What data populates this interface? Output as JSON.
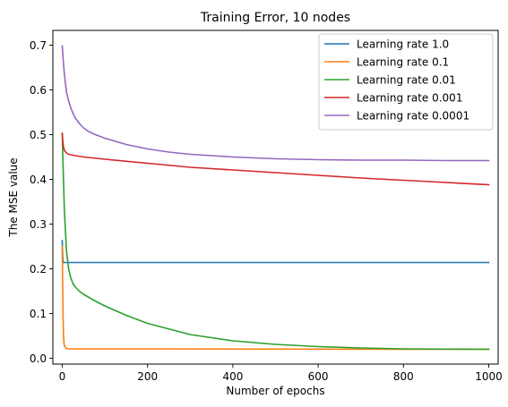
{
  "chart_data": {
    "type": "line",
    "title": "Training Error, 10 nodes",
    "xlabel": "Number of epochs",
    "ylabel": "The MSE value",
    "xlim": [
      -22,
      1022
    ],
    "ylim": [
      -0.013,
      0.733
    ],
    "xticks": [
      0,
      200,
      400,
      600,
      800,
      1000
    ],
    "yticks": [
      0.0,
      0.1,
      0.2,
      0.3,
      0.4,
      0.5,
      0.6,
      0.7
    ],
    "grid": false,
    "legend_position": "top-right",
    "series": [
      {
        "name": "Learning rate 1.0",
        "color": "#1f77b4",
        "x": [
          0,
          1,
          2,
          3,
          5,
          10,
          50,
          200,
          500,
          1000
        ],
        "y": [
          0.263,
          0.23,
          0.216,
          0.214,
          0.214,
          0.214,
          0.214,
          0.214,
          0.214,
          0.214
        ]
      },
      {
        "name": "Learning rate 0.1",
        "color": "#ff7f0e",
        "x": [
          0,
          1,
          2,
          3,
          4,
          5,
          7,
          10,
          15,
          20,
          50,
          100,
          200,
          400,
          600,
          800,
          1000
        ],
        "y": [
          0.25,
          0.17,
          0.09,
          0.05,
          0.035,
          0.028,
          0.024,
          0.022,
          0.021,
          0.021,
          0.021,
          0.021,
          0.021,
          0.0205,
          0.0203,
          0.0202,
          0.0201
        ]
      },
      {
        "name": "Learning rate 0.01",
        "color": "#2ca02c",
        "x": [
          0,
          2,
          5,
          10,
          15,
          20,
          25,
          30,
          40,
          50,
          75,
          100,
          150,
          200,
          300,
          400,
          500,
          600,
          700,
          800,
          900,
          1000
        ],
        "y": [
          0.502,
          0.43,
          0.33,
          0.24,
          0.2,
          0.18,
          0.167,
          0.16,
          0.15,
          0.143,
          0.129,
          0.117,
          0.096,
          0.078,
          0.053,
          0.039,
          0.031,
          0.026,
          0.023,
          0.021,
          0.0205,
          0.02
        ]
      },
      {
        "name": "Learning rate 0.001",
        "color": "#d62728",
        "x": [
          0,
          1,
          2,
          3,
          5,
          8,
          10,
          15,
          20,
          30,
          50,
          100,
          200,
          300,
          400,
          500,
          600,
          700,
          800,
          900,
          1000
        ],
        "y": [
          0.503,
          0.49,
          0.48,
          0.472,
          0.465,
          0.461,
          0.459,
          0.456,
          0.455,
          0.453,
          0.45,
          0.445,
          0.436,
          0.427,
          0.421,
          0.415,
          0.409,
          0.403,
          0.398,
          0.393,
          0.388
        ]
      },
      {
        "name": "Learning rate 0.0001",
        "color": "#9467bd",
        "x": [
          0,
          2,
          5,
          8,
          10,
          15,
          20,
          25,
          30,
          40,
          50,
          60,
          75,
          100,
          150,
          200,
          250,
          300,
          400,
          500,
          600,
          700,
          800,
          900,
          1000
        ],
        "y": [
          0.698,
          0.67,
          0.635,
          0.61,
          0.595,
          0.575,
          0.56,
          0.548,
          0.538,
          0.525,
          0.515,
          0.508,
          0.501,
          0.492,
          0.478,
          0.468,
          0.461,
          0.456,
          0.45,
          0.446,
          0.444,
          0.443,
          0.443,
          0.442,
          0.442
        ]
      }
    ]
  }
}
